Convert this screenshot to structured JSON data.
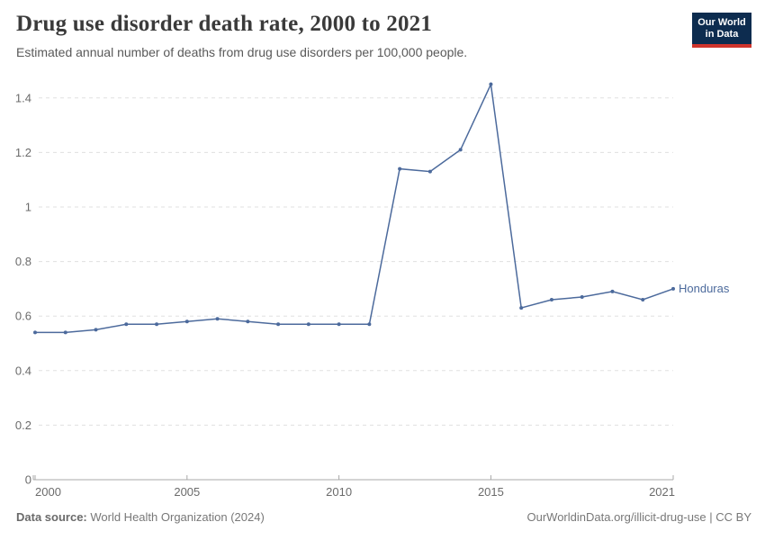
{
  "header": {
    "title": "Drug use disorder death rate, 2000 to 2021",
    "subtitle": "Estimated annual number of deaths from drug use disorders per 100,000 people."
  },
  "logo": {
    "line1": "Our World",
    "line2": "in Data",
    "bg_color": "#0d2c4f",
    "stripe_color": "#cf342c"
  },
  "footer": {
    "source_label": "Data source:",
    "source_value": " World Health Organization (2024)",
    "link_text": "OurWorldinData.org/illicit-drug-use | CC BY"
  },
  "chart_data": {
    "type": "line",
    "title": "Drug use disorder death rate, 2000 to 2021",
    "x": [
      2000,
      2001,
      2002,
      2003,
      2004,
      2005,
      2006,
      2007,
      2008,
      2009,
      2010,
      2011,
      2012,
      2013,
      2014,
      2015,
      2016,
      2017,
      2018,
      2019,
      2020,
      2021
    ],
    "series": [
      {
        "name": "Honduras",
        "color": "#4c6a9c",
        "values": [
          0.54,
          0.54,
          0.55,
          0.57,
          0.57,
          0.58,
          0.59,
          0.58,
          0.57,
          0.57,
          0.57,
          0.57,
          1.14,
          1.13,
          1.21,
          1.45,
          0.63,
          0.66,
          0.67,
          0.69,
          0.66,
          0.7
        ]
      }
    ],
    "xlabel": "",
    "ylabel": "",
    "ylim": [
      0,
      1.5
    ],
    "yticks": [
      0,
      0.2,
      0.4,
      0.6,
      0.8,
      1,
      1.2,
      1.4
    ],
    "xticks": [
      2000,
      2005,
      2010,
      2015,
      2021
    ],
    "grid": "horizontal-dashed",
    "legend_position": "end-of-line",
    "end_label": "Honduras",
    "colors": {
      "grid": "#e0e0e0",
      "axis": "#a8a8a8",
      "tick_label": "#6b6b6b"
    }
  }
}
